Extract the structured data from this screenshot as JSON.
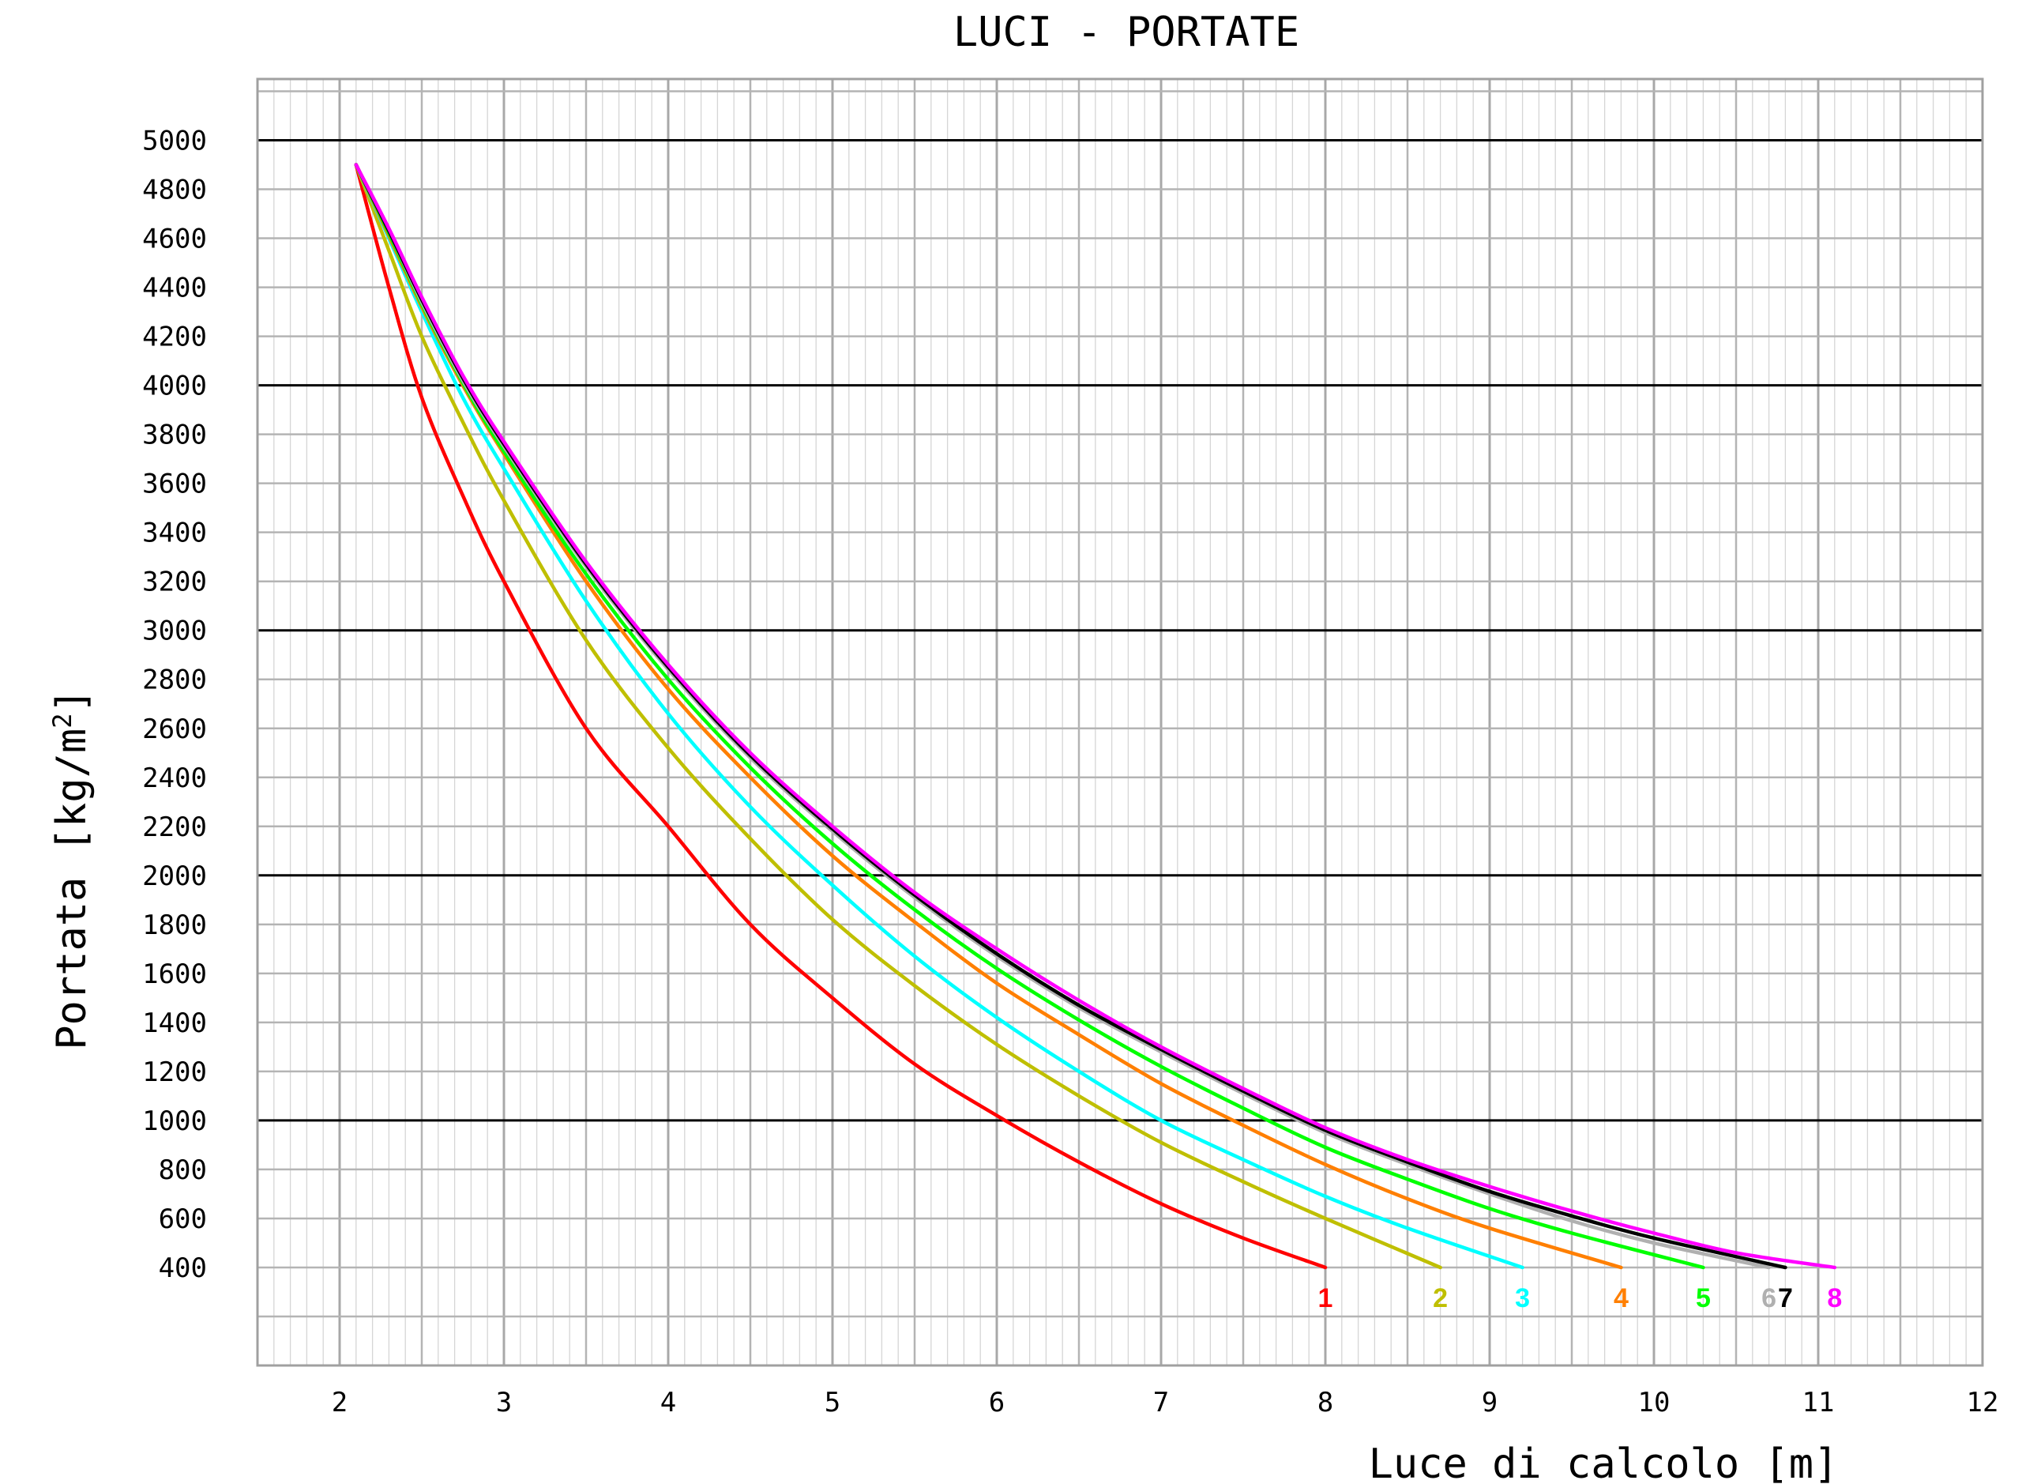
{
  "chart_data": {
    "type": "line",
    "title": "LUCI - PORTATE",
    "xlabel": "Luce di calcolo [m]",
    "ylabel_main": "Portata [kg/m",
    "ylabel_sup": "2",
    "ylabel_end": "]",
    "xlim": [
      1.5,
      12
    ],
    "ylim": [
      0,
      5250
    ],
    "x_ticks": [
      "2",
      "3",
      "4",
      "5",
      "6",
      "7",
      "8",
      "9",
      "10",
      "11",
      "12"
    ],
    "y_ticks": [
      "400",
      "600",
      "800",
      "1000",
      "1200",
      "1400",
      "1600",
      "1800",
      "2000",
      "2200",
      "2400",
      "2600",
      "2800",
      "3000",
      "3200",
      "3400",
      "3600",
      "3800",
      "4000",
      "4200",
      "4400",
      "4600",
      "4800",
      "5000"
    ],
    "grid": true,
    "series": [
      {
        "name": "1",
        "color": "#ff0000",
        "x": [
          2.1,
          2.3,
          2.5,
          2.75,
          3.0,
          3.5,
          4.0,
          4.5,
          5.0,
          5.5,
          6.0,
          6.5,
          7.0,
          7.5,
          8.0
        ],
        "y": [
          4900,
          4400,
          3950,
          3550,
          3200,
          2600,
          2200,
          1800,
          1500,
          1230,
          1020,
          830,
          660,
          520,
          400
        ]
      },
      {
        "name": "2",
        "color": "#bfbf00",
        "x": [
          2.1,
          2.3,
          2.5,
          2.75,
          3.0,
          3.5,
          4.0,
          4.5,
          5.0,
          5.5,
          6.0,
          6.5,
          7.0,
          7.5,
          8.0,
          8.7
        ],
        "y": [
          4900,
          4550,
          4200,
          3850,
          3530,
          2960,
          2520,
          2150,
          1820,
          1550,
          1310,
          1100,
          910,
          750,
          600,
          400
        ]
      },
      {
        "name": "3",
        "color": "#00ffff",
        "x": [
          2.1,
          2.3,
          2.5,
          2.75,
          3.0,
          3.5,
          4.0,
          4.5,
          5.0,
          5.5,
          6.0,
          6.5,
          7.0,
          7.5,
          8.0,
          8.5,
          9.2
        ],
        "y": [
          4900,
          4600,
          4300,
          3950,
          3660,
          3120,
          2660,
          2280,
          1960,
          1670,
          1420,
          1200,
          1000,
          840,
          690,
          560,
          400
        ]
      },
      {
        "name": "4",
        "color": "#ff7f00",
        "x": [
          2.1,
          2.3,
          2.5,
          2.75,
          3.0,
          3.5,
          4.0,
          4.5,
          5.0,
          5.5,
          6.0,
          6.5,
          7.0,
          7.5,
          8.0,
          8.5,
          9.0,
          9.8
        ],
        "y": [
          4900,
          4610,
          4320,
          4000,
          3720,
          3200,
          2760,
          2400,
          2080,
          1810,
          1560,
          1350,
          1150,
          980,
          820,
          680,
          560,
          400
        ]
      },
      {
        "name": "5",
        "color": "#00ff00",
        "x": [
          2.1,
          2.3,
          2.5,
          2.75,
          3.0,
          3.5,
          4.0,
          4.5,
          5.0,
          5.5,
          6.0,
          6.5,
          7.0,
          7.5,
          8.0,
          8.5,
          9.0,
          9.5,
          10.3
        ],
        "y": [
          4900,
          4620,
          4330,
          4010,
          3730,
          3230,
          2800,
          2440,
          2130,
          1860,
          1620,
          1410,
          1220,
          1050,
          890,
          760,
          640,
          540,
          400
        ]
      },
      {
        "name": "6",
        "color": "#b0b0b0",
        "x": [
          2.1,
          2.3,
          2.5,
          2.75,
          3.0,
          3.5,
          4.0,
          4.5,
          5.0,
          5.5,
          6.0,
          6.5,
          7.0,
          7.5,
          8.0,
          8.5,
          9.0,
          9.5,
          10.0,
          10.7
        ],
        "y": [
          4900,
          4630,
          4340,
          4020,
          3750,
          3260,
          2840,
          2480,
          2180,
          1910,
          1670,
          1460,
          1280,
          1110,
          950,
          820,
          700,
          590,
          500,
          400
        ]
      },
      {
        "name": "7",
        "color": "#000000",
        "x": [
          2.1,
          2.3,
          2.5,
          2.75,
          3.0,
          3.5,
          4.0,
          4.5,
          5.0,
          5.5,
          6.0,
          6.5,
          7.0,
          7.5,
          8.0,
          8.5,
          9.0,
          9.5,
          10.0,
          10.8
        ],
        "y": [
          4900,
          4630,
          4350,
          4030,
          3760,
          3270,
          2850,
          2490,
          2190,
          1920,
          1680,
          1470,
          1290,
          1120,
          960,
          830,
          710,
          610,
          520,
          400
        ]
      },
      {
        "name": "8",
        "color": "#ff00ff",
        "x": [
          2.1,
          2.3,
          2.5,
          2.75,
          3.0,
          3.5,
          4.0,
          4.5,
          5.0,
          5.5,
          6.0,
          6.5,
          7.0,
          7.5,
          8.0,
          8.5,
          9.0,
          9.5,
          10.0,
          10.5,
          11.1
        ],
        "y": [
          4900,
          4640,
          4360,
          4040,
          3770,
          3280,
          2860,
          2500,
          2200,
          1930,
          1700,
          1490,
          1300,
          1130,
          970,
          840,
          730,
          630,
          540,
          460,
          400
        ]
      }
    ]
  }
}
